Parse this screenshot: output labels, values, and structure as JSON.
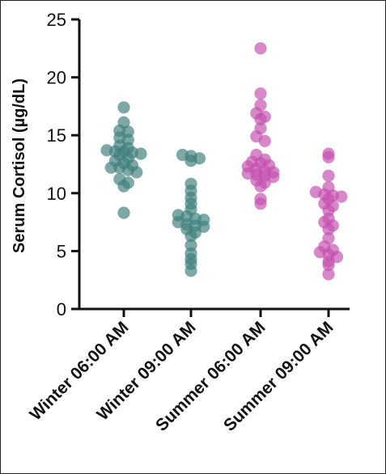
{
  "chart_data": {
    "type": "scatter",
    "subtype": "dot-strip-plot",
    "title": "",
    "ylabel": "Serum Cortisol (µg/dL)",
    "xlabel": "",
    "ylim": [
      0,
      25
    ],
    "yticks": [
      "0",
      "5",
      "10",
      "15",
      "20",
      "25"
    ],
    "grid": false,
    "categories": [
      "Winter 06:00 AM",
      "Winter 09:00 AM",
      "Summer 06:00 AM",
      "Summer 09:00 AM"
    ],
    "series": [
      {
        "color": "#3f7f7a",
        "values": [
          17.4,
          16.1,
          15.4,
          15.3,
          14.8,
          14.6,
          14.1,
          13.9,
          13.7,
          13.6,
          13.6,
          13.5,
          13.4,
          13.3,
          13.0,
          12.8,
          12.6,
          12.4,
          12.2,
          12.2,
          12.0,
          11.8,
          11.2,
          10.9,
          10.6,
          8.3
        ]
      },
      {
        "color": "#3f7f7a",
        "values": [
          13.3,
          13.2,
          13.0,
          12.8,
          10.8,
          10.2,
          9.6,
          9.1,
          8.6,
          8.1,
          8.0,
          7.8,
          7.7,
          7.5,
          7.3,
          7.2,
          7.1,
          6.9,
          6.6,
          6.3,
          5.5,
          4.8,
          4.3,
          3.9,
          3.3
        ]
      },
      {
        "color": "#c44fae",
        "values": [
          22.5,
          18.6,
          17.6,
          16.9,
          16.6,
          16.4,
          15.6,
          14.9,
          14.5,
          13.3,
          12.9,
          12.7,
          12.6,
          12.4,
          12.3,
          12.1,
          11.9,
          11.8,
          11.7,
          11.6,
          11.5,
          11.4,
          11.1,
          10.9,
          10.6,
          9.5,
          9.1
        ]
      },
      {
        "color": "#c44fae",
        "values": [
          13.4,
          13.1,
          11.5,
          10.5,
          10.1,
          9.9,
          9.8,
          9.7,
          9.5,
          9.1,
          8.9,
          8.5,
          7.8,
          7.5,
          7.2,
          6.9,
          6.1,
          5.4,
          5.1,
          4.9,
          4.7,
          4.5,
          4.1,
          3.8,
          3.0
        ]
      }
    ]
  }
}
